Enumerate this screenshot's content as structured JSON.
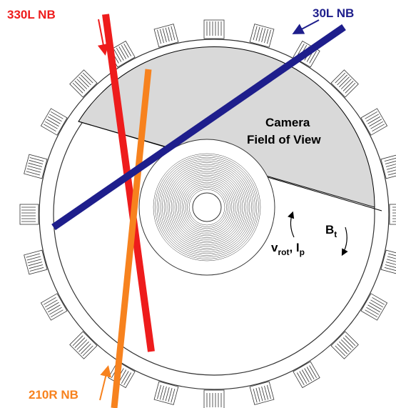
{
  "labels": {
    "beam_330": "330L  NB",
    "beam_30": "30L  NB",
    "beam_210": "210R  NB",
    "camera": [
      "Camera",
      "Field of View"
    ],
    "rotation": {
      "v": "v",
      "v_sub": "rot",
      "sep": ", I",
      "i_sub": "p"
    },
    "field": {
      "b": "B",
      "b_sub": "t"
    }
  }
}
